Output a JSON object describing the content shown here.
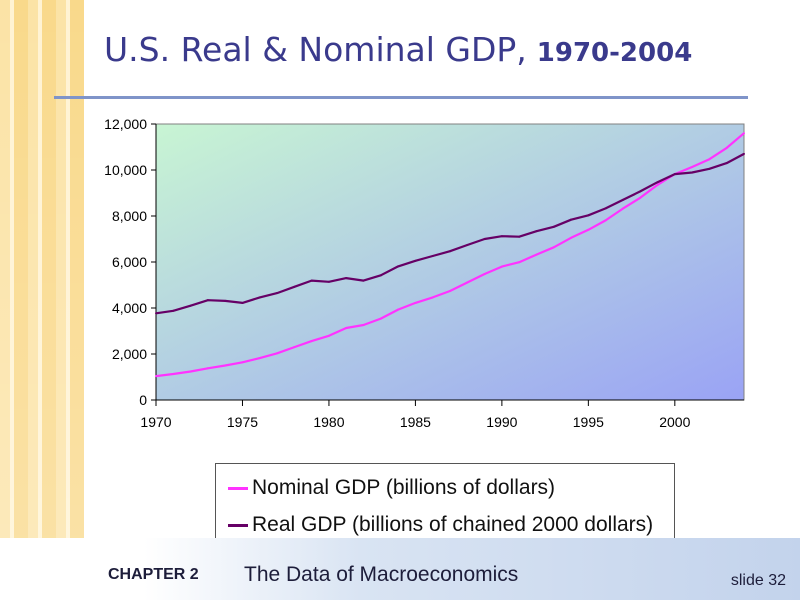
{
  "slide": {
    "title": "U.S. Real & Nominal GDP,",
    "title_years": "1970-2004",
    "chapter_label": "CHAPTER 2",
    "chapter_title": "The Data of Macroeconomics",
    "slide_number": "slide 32"
  },
  "colors": {
    "nominal": "#ff33ff",
    "real": "#660066",
    "title": "#3a3a8c",
    "plot_gradient_start": "#c8f5d3",
    "plot_gradient_end": "#9aa3f5"
  },
  "chart_data": {
    "type": "line",
    "title": "U.S. Real & Nominal GDP, 1970-2004",
    "xlabel": "",
    "ylabel": "",
    "xlim": [
      1970,
      2004
    ],
    "ylim": [
      0,
      12000
    ],
    "x_ticks": [
      1970,
      1975,
      1980,
      1985,
      1990,
      1995,
      2000
    ],
    "x_tick_labels": [
      "1970",
      "1975",
      "1980",
      "1985",
      "1990",
      "1995",
      "2000"
    ],
    "y_ticks": [
      0,
      2000,
      4000,
      6000,
      8000,
      10000,
      12000
    ],
    "y_tick_labels": [
      "0",
      "2,000",
      "4,000",
      "6,000",
      "8,000",
      "10,000",
      "12,000"
    ],
    "grid": false,
    "legend_position": "bottom",
    "series": [
      {
        "name": "Nominal GDP (billions of dollars)",
        "color": "#ff33ff",
        "x": [
          1970,
          1971,
          1972,
          1973,
          1974,
          1975,
          1976,
          1977,
          1978,
          1979,
          1980,
          1981,
          1982,
          1983,
          1984,
          1985,
          1986,
          1987,
          1988,
          1989,
          1990,
          1991,
          1992,
          1993,
          1994,
          1995,
          1996,
          1997,
          1998,
          1999,
          2000,
          2001,
          2002,
          2003,
          2004
        ],
        "values": [
          1040,
          1130,
          1240,
          1380,
          1500,
          1640,
          1820,
          2030,
          2300,
          2560,
          2790,
          3130,
          3260,
          3540,
          3930,
          4220,
          4460,
          4740,
          5110,
          5480,
          5800,
          5990,
          6320,
          6640,
          7050,
          7400,
          7810,
          8320,
          8790,
          9350,
          9820,
          10130,
          10470,
          10960,
          11600
        ]
      },
      {
        "name": "Real GDP (billions of chained 2000 dollars)",
        "color": "#660066",
        "x": [
          1970,
          1971,
          1972,
          1973,
          1974,
          1975,
          1976,
          1977,
          1978,
          1979,
          1980,
          1981,
          1982,
          1983,
          1984,
          1985,
          1986,
          1987,
          1988,
          1989,
          1990,
          1991,
          1992,
          1993,
          1994,
          1995,
          1996,
          1997,
          1998,
          1999,
          2000,
          2001,
          2002,
          2003,
          2004
        ],
        "values": [
          3770,
          3880,
          4100,
          4340,
          4310,
          4220,
          4460,
          4650,
          4920,
          5190,
          5140,
          5300,
          5190,
          5420,
          5810,
          6050,
          6260,
          6470,
          6740,
          7000,
          7120,
          7100,
          7340,
          7530,
          7840,
          8030,
          8330,
          8700,
          9070,
          9470,
          9820,
          9890,
          10050,
          10300,
          10700
        ]
      }
    ]
  }
}
